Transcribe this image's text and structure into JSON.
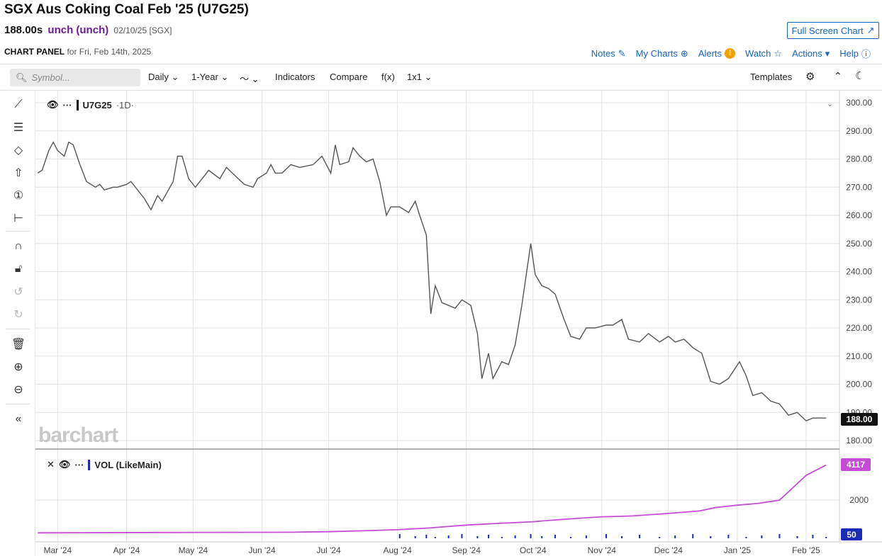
{
  "header": {
    "title": "SGX Aus Coking Coal Feb '25 (U7G25)",
    "price": "188.00s",
    "change": "unch (unch)",
    "meta": "02/10/25 [SGX]",
    "fullscreen_label": "Full Screen Chart"
  },
  "panel": {
    "label": "CHART PANEL",
    "sub": "for Fri, Feb 14th, 2025"
  },
  "toplinks": {
    "notes": "Notes",
    "mycharts": "My Charts",
    "alerts": "Alerts",
    "watch": "Watch",
    "actions": "Actions",
    "help": "Help"
  },
  "toolbar": {
    "symbol_placeholder": "Symbol...",
    "interval": "Daily",
    "range": "1-Year",
    "indicators": "Indicators",
    "compare": "Compare",
    "fx": "f(x)",
    "layout": "1x1",
    "templates": "Templates"
  },
  "legend": {
    "main_symbol": "U7G25",
    "main_interval": "·1D·",
    "volume": "VOL (LikeMain)"
  },
  "watermark": "barchart",
  "labels": {
    "last_price": "188.00",
    "vol_last": "4117",
    "vol_bar": "50"
  },
  "colors": {
    "price_line": "#555555",
    "volume_line": "#c64bd6",
    "volume_bars": "#1a2bb8",
    "link": "#1565c0"
  },
  "chart_data": {
    "type": "line",
    "y_axis_ticks": [
      300,
      290,
      280,
      270,
      260,
      250,
      240,
      230,
      220,
      210,
      200,
      190,
      180
    ],
    "ylim": [
      180,
      300
    ],
    "volume_axis_ticks": [
      2000
    ],
    "x_axis_labels": [
      "Mar '24",
      "Apr '24",
      "May '24",
      "Jun '24",
      "Jul '24",
      "Aug '24",
      "Sep '24",
      "Oct '24",
      "Nov '24",
      "Dec '24",
      "Jan '25",
      "Feb '25"
    ],
    "price_series": [
      [
        "Feb 21",
        275
      ],
      [
        "Feb 23",
        276
      ],
      [
        "Feb 26",
        283
      ],
      [
        "Feb 28",
        286
      ],
      [
        "Mar 1",
        283
      ],
      [
        "Mar 4",
        281
      ],
      [
        "Mar 6",
        286
      ],
      [
        "Mar 8",
        285
      ],
      [
        "Mar 11",
        278
      ],
      [
        "Mar 14",
        272
      ],
      [
        "Mar 18",
        270
      ],
      [
        "Mar 20",
        271
      ],
      [
        "Mar 22",
        269
      ],
      [
        "Mar 26",
        270
      ],
      [
        "Mar 28",
        270
      ],
      [
        "Apr 1",
        271
      ],
      [
        "Apr 3",
        272
      ],
      [
        "Apr 5",
        270
      ],
      [
        "Apr 9",
        266
      ],
      [
        "Apr 12",
        262
      ],
      [
        "Apr 15",
        267
      ],
      [
        "Apr 17",
        265
      ],
      [
        "Apr 22",
        272
      ],
      [
        "Apr 24",
        281
      ],
      [
        "Apr 26",
        281
      ],
      [
        "Apr 29",
        273
      ],
      [
        "May 2",
        270
      ],
      [
        "May 6",
        274
      ],
      [
        "May 8",
        276
      ],
      [
        "May 13",
        273
      ],
      [
        "May 16",
        277
      ],
      [
        "May 20",
        274
      ],
      [
        "May 24",
        271
      ],
      [
        "May 28",
        270
      ],
      [
        "May 30",
        273
      ],
      [
        "Jun 3",
        275
      ],
      [
        "Jun 5",
        278
      ],
      [
        "Jun 7",
        275
      ],
      [
        "Jun 10",
        275
      ],
      [
        "Jun 14",
        278
      ],
      [
        "Jun 18",
        277
      ],
      [
        "Jun 24",
        278
      ],
      [
        "Jun 28",
        281
      ],
      [
        "Jul 2",
        275
      ],
      [
        "Jul 4",
        285
      ],
      [
        "Jul 6",
        278
      ],
      [
        "Jul 10",
        279
      ],
      [
        "Jul 12",
        284
      ],
      [
        "Jul 15",
        281
      ],
      [
        "Jul 18",
        279
      ],
      [
        "Jul 21",
        280
      ],
      [
        "Jul 24",
        272
      ],
      [
        "Jul 27",
        260
      ],
      [
        "Jul 29",
        263
      ],
      [
        "Aug 2",
        263
      ],
      [
        "Aug 6",
        261
      ],
      [
        "Aug 9",
        265
      ],
      [
        "Aug 11",
        260
      ],
      [
        "Aug 14",
        253
      ],
      [
        "Aug 16",
        225
      ],
      [
        "Aug 18",
        235
      ],
      [
        "Aug 21",
        229
      ],
      [
        "Aug 24",
        228
      ],
      [
        "Aug 27",
        227
      ],
      [
        "Aug 30",
        230
      ],
      [
        "Sep 3",
        228
      ],
      [
        "Sep 6",
        218
      ],
      [
        "Sep 8",
        202
      ],
      [
        "Sep 11",
        211
      ],
      [
        "Sep 13",
        202
      ],
      [
        "Sep 17",
        208
      ],
      [
        "Sep 20",
        207
      ],
      [
        "Sep 23",
        214
      ],
      [
        "Sep 26",
        228
      ],
      [
        "Sep 30",
        250
      ],
      [
        "Oct 2",
        239
      ],
      [
        "Oct 5",
        235
      ],
      [
        "Oct 8",
        234
      ],
      [
        "Oct 11",
        232
      ],
      [
        "Oct 15",
        223
      ],
      [
        "Oct 18",
        217
      ],
      [
        "Oct 22",
        216
      ],
      [
        "Oct 25",
        220
      ],
      [
        "Oct 29",
        220
      ],
      [
        "Nov 3",
        221
      ],
      [
        "Nov 6",
        221
      ],
      [
        "Nov 10",
        223
      ],
      [
        "Nov 13",
        216
      ],
      [
        "Nov 18",
        215
      ],
      [
        "Nov 22",
        218
      ],
      [
        "Nov 27",
        215
      ],
      [
        "Dec 1",
        217
      ],
      [
        "Dec 4",
        215
      ],
      [
        "Dec 8",
        216
      ],
      [
        "Dec 12",
        213
      ],
      [
        "Dec 16",
        211
      ],
      [
        "Dec 20",
        201
      ],
      [
        "Dec 24",
        200
      ],
      [
        "Dec 28",
        202
      ],
      [
        "Jan 2",
        208
      ],
      [
        "Jan 5",
        203
      ],
      [
        "Jan 8",
        196
      ],
      [
        "Jan 12",
        197
      ],
      [
        "Jan 16",
        194
      ],
      [
        "Jan 20",
        193
      ],
      [
        "Jan 24",
        189
      ],
      [
        "Jan 28",
        190
      ],
      [
        "Feb 1",
        187
      ],
      [
        "Feb 4",
        188
      ],
      [
        "Feb 7",
        188
      ],
      [
        "Feb 10",
        188
      ]
    ],
    "volume_cumulative_series": [
      [
        "Feb 21",
        30
      ],
      [
        "Mar 15",
        40
      ],
      [
        "Apr 15",
        50
      ],
      [
        "May 15",
        60
      ],
      [
        "Jun 15",
        70
      ],
      [
        "Jul 1",
        100
      ],
      [
        "Jul 15",
        150
      ],
      [
        "Aug 1",
        220
      ],
      [
        "Aug 15",
        320
      ],
      [
        "Sep 1",
        500
      ],
      [
        "Sep 15",
        600
      ],
      [
        "Oct 1",
        700
      ],
      [
        "Oct 15",
        850
      ],
      [
        "Nov 1",
        1000
      ],
      [
        "Nov 15",
        1050
      ],
      [
        "Dec 1",
        1200
      ],
      [
        "Dec 15",
        1350
      ],
      [
        "Dec 22",
        1550
      ],
      [
        "Jan 1",
        1700
      ],
      [
        "Jan 10",
        1800
      ],
      [
        "Jan 20",
        2000
      ],
      [
        "Feb 1",
        3500
      ],
      [
        "Feb 10",
        4117
      ]
    ]
  }
}
